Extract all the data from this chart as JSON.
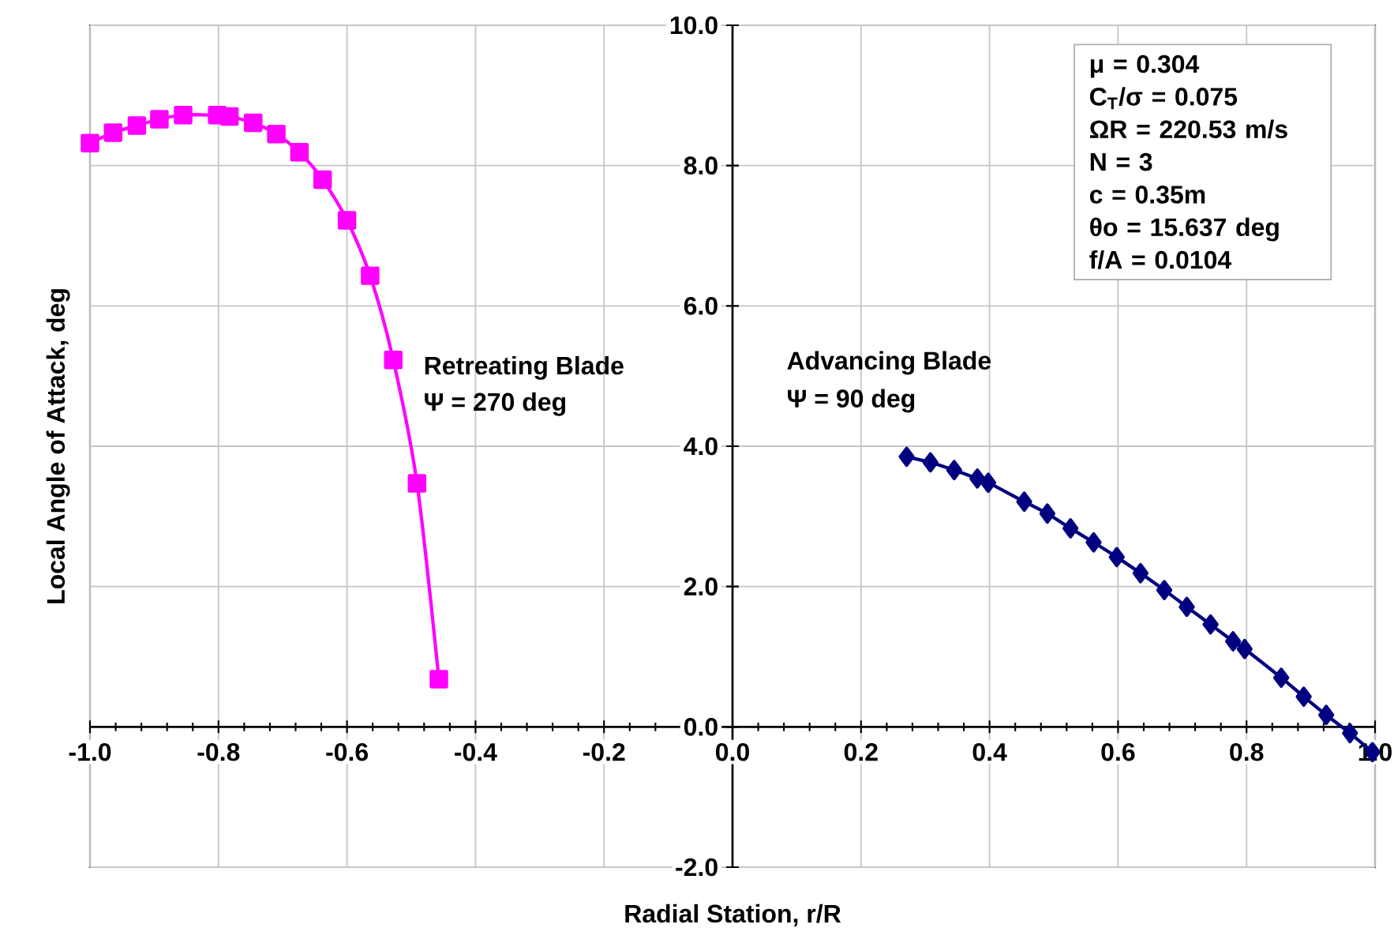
{
  "chart_data": {
    "type": "line",
    "xlabel": "Radial Station, r/R",
    "ylabel": "Local Angle of Attack, deg",
    "xlim": [
      -1.0,
      1.0
    ],
    "ylim": [
      -2.0,
      10.0
    ],
    "xticks": [
      {
        "value": -1.0,
        "label": "-1.0"
      },
      {
        "value": -0.8,
        "label": "-0.8"
      },
      {
        "value": -0.6,
        "label": "-0.6"
      },
      {
        "value": -0.4,
        "label": "-0.4"
      },
      {
        "value": -0.2,
        "label": "-0.2"
      },
      {
        "value": 0.0,
        "label": "0.0"
      },
      {
        "value": 0.2,
        "label": "0.2"
      },
      {
        "value": 0.4,
        "label": "0.4"
      },
      {
        "value": 0.6,
        "label": "0.6"
      },
      {
        "value": 0.8,
        "label": "0.8"
      },
      {
        "value": 1.0,
        "label": "1.0"
      }
    ],
    "yticks": [
      {
        "value": -2.0,
        "label": "-2.0"
      },
      {
        "value": 0.0,
        "label": "0.0"
      },
      {
        "value": 2.0,
        "label": "2.0"
      },
      {
        "value": 4.0,
        "label": "4.0"
      },
      {
        "value": 6.0,
        "label": "6.0"
      },
      {
        "value": 8.0,
        "label": "8.0"
      },
      {
        "value": 10.0,
        "label": "10.0"
      }
    ],
    "grid": true,
    "line_style": "solid",
    "series": [
      {
        "color": "#ff00ff",
        "marker": "square",
        "x": [
          -1.0,
          -0.964,
          -0.927,
          -0.892,
          -0.855,
          -0.802,
          -0.783,
          -0.746,
          -0.71,
          -0.674,
          -0.638,
          -0.6,
          -0.564,
          -0.528,
          -0.491,
          -0.457
        ],
        "values": [
          8.32,
          8.47,
          8.57,
          8.66,
          8.72,
          8.72,
          8.7,
          8.61,
          8.45,
          8.19,
          7.8,
          7.22,
          6.43,
          5.23,
          3.47,
          0.68
        ]
      },
      {
        "color": "#000080",
        "marker": "diamond",
        "x": [
          0.271,
          0.308,
          0.345,
          0.381,
          0.398,
          0.454,
          0.49,
          0.526,
          0.562,
          0.598,
          0.635,
          0.672,
          0.707,
          0.744,
          0.779,
          0.797,
          0.854,
          0.889,
          0.924,
          0.961,
          0.996
        ],
        "values": [
          3.85,
          3.77,
          3.66,
          3.54,
          3.48,
          3.21,
          3.04,
          2.83,
          2.63,
          2.42,
          2.19,
          1.95,
          1.71,
          1.46,
          1.22,
          1.11,
          0.7,
          0.43,
          0.17,
          -0.09,
          -0.36
        ]
      }
    ],
    "annotations": [
      "Retreating Blade",
      "Ψ = 270 deg",
      "Advancing Blade",
      "Ψ = 90 deg",
      "μ = 0.304",
      "C$_{T}$/σ = 0.075",
      "ΩR = 220.53 m/s",
      "N = 3",
      "c = 0.35m",
      "θo = 15.637 deg",
      "f/A = 0.0104"
    ]
  }
}
